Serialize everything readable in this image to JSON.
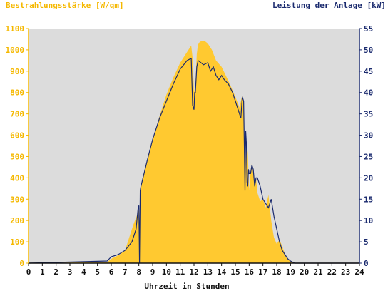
{
  "chart_data": {
    "type": "area",
    "title_left": "Bestrahlungsstärke [W/qm]",
    "title_right": "Leistung der Anlage [kW]",
    "xlabel": "Uhrzeit in Stunden",
    "xlim": [
      0,
      24
    ],
    "ylim_left": [
      0,
      1100
    ],
    "ylim_right": [
      0,
      55
    ],
    "x_ticks": [
      "0",
      "1",
      "2",
      "3",
      "4",
      "5",
      "6",
      "7",
      "8",
      "9",
      "10",
      "11",
      "12",
      "13",
      "14",
      "15",
      "16",
      "17",
      "18",
      "19",
      "20",
      "21",
      "22",
      "23",
      "24"
    ],
    "y_left_ticks": [
      "0",
      "100",
      "200",
      "300",
      "400",
      "500",
      "600",
      "700",
      "800",
      "900",
      "1000",
      "1100"
    ],
    "y_right_ticks": [
      "0",
      "5",
      "10",
      "15",
      "20",
      "25",
      "30",
      "35",
      "40",
      "45",
      "50",
      "55"
    ],
    "grid": false,
    "colors": {
      "irradiance": "#ffc930",
      "power": "#1a2a6e",
      "plot_background": "#dcdcdc",
      "left_axis_text": "#f5b800",
      "right_axis_text": "#1a2a6e"
    },
    "series": [
      {
        "name": "Bestrahlungsstärke [W/qm]",
        "axis": "left",
        "style": "area",
        "x": [
          0,
          5.7,
          6.0,
          6.3,
          6.6,
          7.0,
          7.3,
          7.6,
          7.9,
          8.0,
          8.05,
          8.1,
          8.2,
          8.5,
          9.0,
          9.5,
          10.0,
          10.5,
          11.0,
          11.5,
          11.8,
          11.9,
          12.0,
          12.1,
          12.2,
          12.3,
          12.5,
          12.8,
          13.0,
          13.3,
          13.6,
          14.0,
          14.3,
          14.6,
          15.0,
          15.3,
          15.5,
          15.6,
          15.7,
          15.8,
          15.9,
          16.0,
          16.1,
          16.2,
          16.3,
          16.4,
          16.5,
          16.6,
          16.8,
          17.0,
          17.2,
          17.4,
          17.6,
          17.8,
          18.0,
          18.2,
          18.4,
          18.5,
          18.7,
          19.0,
          19.3,
          19.5,
          20.0,
          24
        ],
        "y": [
          0,
          5,
          20,
          30,
          40,
          60,
          120,
          180,
          230,
          250,
          10,
          320,
          380,
          460,
          580,
          690,
          790,
          870,
          940,
          990,
          1020,
          960,
          800,
          830,
          980,
          1030,
          1040,
          1040,
          1030,
          1000,
          950,
          920,
          880,
          840,
          780,
          730,
          790,
          760,
          380,
          560,
          520,
          340,
          430,
          470,
          420,
          380,
          400,
          330,
          290,
          300,
          260,
          320,
          200,
          120,
          90,
          110,
          80,
          60,
          30,
          10,
          0,
          0,
          0,
          0
        ]
      },
      {
        "name": "Leistung der Anlage [kW]",
        "axis": "right",
        "style": "line",
        "x": [
          0,
          5.7,
          6.0,
          6.5,
          7.0,
          7.5,
          7.8,
          7.95,
          8.0,
          8.05,
          8.1,
          8.15,
          8.3,
          8.6,
          9.0,
          9.5,
          10.0,
          10.5,
          11.0,
          11.5,
          11.8,
          11.9,
          12.0,
          12.05,
          12.1,
          12.2,
          12.3,
          12.5,
          12.7,
          13.0,
          13.2,
          13.4,
          13.6,
          13.8,
          14.0,
          14.2,
          14.5,
          14.8,
          15.0,
          15.2,
          15.4,
          15.5,
          15.6,
          15.7,
          15.75,
          15.8,
          15.85,
          15.9,
          15.95,
          16.0,
          16.1,
          16.2,
          16.3,
          16.4,
          16.5,
          16.6,
          16.8,
          17.0,
          17.2,
          17.4,
          17.6,
          17.8,
          18.0,
          18.2,
          18.4,
          18.6,
          18.8,
          19.0,
          19.3,
          19.5,
          20.0,
          24
        ],
        "y": [
          0,
          0.5,
          1.5,
          2,
          3,
          5,
          8,
          13,
          13.5,
          0,
          17,
          18,
          20,
          24,
          29,
          34,
          38,
          42,
          45.5,
          47.5,
          48,
          37,
          36,
          40,
          40,
          46,
          47.5,
          47,
          46.5,
          47,
          45,
          46,
          44,
          43,
          44,
          43,
          42,
          40,
          38,
          36,
          34,
          39,
          38,
          17,
          31,
          28,
          19,
          18,
          22,
          21,
          21,
          23,
          22,
          18,
          20,
          20,
          18,
          15,
          14,
          13,
          15,
          11,
          8,
          5,
          3,
          2,
          1,
          0.5,
          0,
          0,
          0,
          0
        ]
      }
    ]
  }
}
